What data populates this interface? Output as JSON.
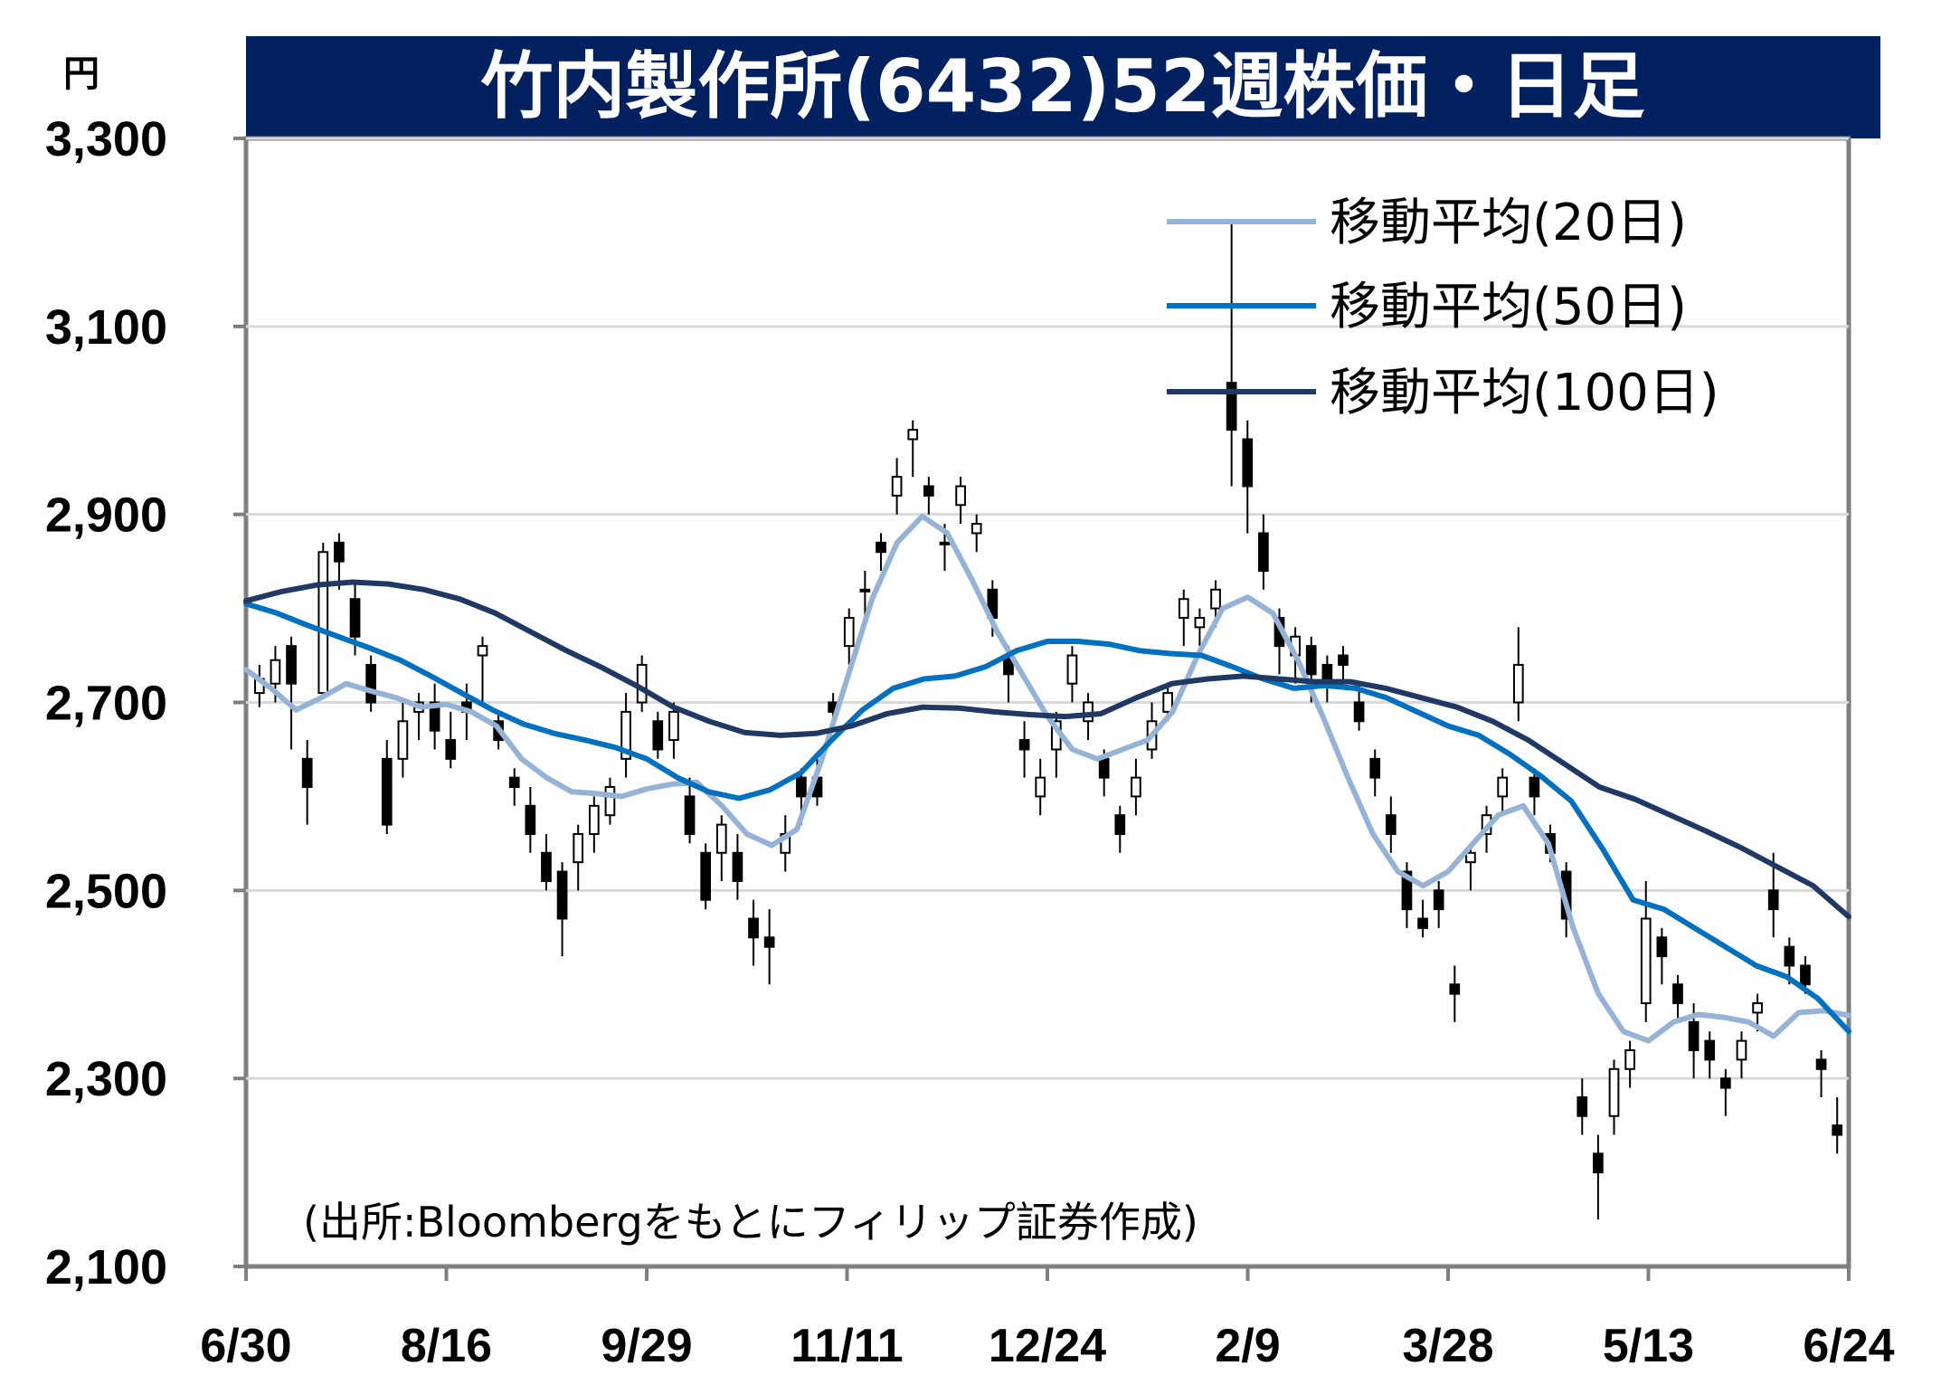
{
  "chart_data": {
    "type": "candlestick",
    "title": "竹内製作所(6432)52週株価・日足",
    "yunit": "円",
    "ylim": [
      2100,
      3300
    ],
    "yticks": [
      2100,
      2300,
      2500,
      2700,
      2900,
      3100,
      3300
    ],
    "ytick_labels": [
      "2,100",
      "2,300",
      "2,500",
      "2,700",
      "2,900",
      "3,100",
      "3,300"
    ],
    "xtick_labels": [
      "6/30",
      "8/16",
      "9/29",
      "11/11",
      "12/24",
      "2/9",
      "3/28",
      "5/13",
      "6/24"
    ],
    "grid": true,
    "legend_position": "top-right",
    "source": "(出所:Bloombergをもとにフィリップ証券作成)",
    "moving_averages": [
      {
        "name": "移動平均(20日)",
        "color": "#95b3d7",
        "values": [
          2735,
          2715,
          2692,
          2705,
          2720,
          2712,
          2705,
          2695,
          2698,
          2690,
          2675,
          2640,
          2620,
          2605,
          2603,
          2600,
          2608,
          2613,
          2615,
          2590,
          2560,
          2548,
          2565,
          2640,
          2725,
          2810,
          2870,
          2898,
          2880,
          2830,
          2775,
          2730,
          2685,
          2650,
          2640,
          2650,
          2660,
          2690,
          2750,
          2800,
          2812,
          2795,
          2745,
          2685,
          2620,
          2560,
          2520,
          2505,
          2520,
          2550,
          2580,
          2590,
          2550,
          2460,
          2390,
          2350,
          2340,
          2360,
          2368,
          2365,
          2360,
          2345,
          2370,
          2372,
          2367
        ]
      },
      {
        "name": "移動平均(50日)",
        "color": "#0070c0",
        "values": [
          2805,
          2795,
          2782,
          2770,
          2758,
          2745,
          2728,
          2710,
          2692,
          2677,
          2667,
          2660,
          2652,
          2640,
          2620,
          2605,
          2598,
          2607,
          2625,
          2660,
          2692,
          2715,
          2725,
          2728,
          2738,
          2755,
          2765,
          2765,
          2762,
          2755,
          2752,
          2750,
          2738,
          2725,
          2715,
          2718,
          2715,
          2705,
          2690,
          2675,
          2665,
          2645,
          2622,
          2595,
          2545,
          2490,
          2480,
          2460,
          2440,
          2420,
          2408,
          2385,
          2350
        ]
      },
      {
        "name": "移動平均(100日)",
        "color": "#1f3864",
        "values": [
          2808,
          2818,
          2825,
          2828,
          2826,
          2820,
          2810,
          2795,
          2775,
          2755,
          2737,
          2717,
          2695,
          2680,
          2668,
          2665,
          2667,
          2675,
          2688,
          2695,
          2694,
          2690,
          2687,
          2685,
          2688,
          2705,
          2720,
          2725,
          2728,
          2725,
          2722,
          2722,
          2715,
          2705,
          2695,
          2680,
          2660,
          2635,
          2610,
          2597,
          2580,
          2563,
          2545,
          2525,
          2505,
          2472
        ]
      }
    ],
    "candles": [
      [
        2710,
        2725,
        2695,
        2740
      ],
      [
        2720,
        2745,
        2700,
        2760
      ],
      [
        2760,
        2720,
        2650,
        2770
      ],
      [
        2640,
        2610,
        2570,
        2660
      ],
      [
        2710,
        2860,
        2705,
        2870
      ],
      [
        2870,
        2850,
        2820,
        2880
      ],
      [
        2810,
        2770,
        2750,
        2830
      ],
      [
        2740,
        2700,
        2690,
        2750
      ],
      [
        2640,
        2570,
        2560,
        2660
      ],
      [
        2640,
        2680,
        2620,
        2700
      ],
      [
        2690,
        2700,
        2660,
        2710
      ],
      [
        2700,
        2670,
        2650,
        2720
      ],
      [
        2660,
        2640,
        2630,
        2690
      ],
      [
        2700,
        2690,
        2660,
        2720
      ],
      [
        2750,
        2760,
        2700,
        2770
      ],
      [
        2680,
        2660,
        2650,
        2690
      ],
      [
        2620,
        2610,
        2590,
        2630
      ],
      [
        2590,
        2560,
        2540,
        2610
      ],
      [
        2540,
        2510,
        2500,
        2560
      ],
      [
        2520,
        2470,
        2430,
        2530
      ],
      [
        2530,
        2560,
        2500,
        2570
      ],
      [
        2560,
        2590,
        2540,
        2600
      ],
      [
        2580,
        2610,
        2570,
        2620
      ],
      [
        2640,
        2690,
        2620,
        2710
      ],
      [
        2700,
        2740,
        2690,
        2750
      ],
      [
        2680,
        2650,
        2640,
        2690
      ],
      [
        2660,
        2690,
        2640,
        2700
      ],
      [
        2600,
        2560,
        2550,
        2620
      ],
      [
        2540,
        2490,
        2480,
        2550
      ],
      [
        2540,
        2570,
        2510,
        2580
      ],
      [
        2540,
        2510,
        2490,
        2560
      ],
      [
        2470,
        2450,
        2420,
        2490
      ],
      [
        2450,
        2440,
        2400,
        2480
      ],
      [
        2540,
        2560,
        2520,
        2580
      ],
      [
        2620,
        2600,
        2570,
        2630
      ],
      [
        2620,
        2600,
        2590,
        2640
      ],
      [
        2700,
        2690,
        2670,
        2710
      ],
      [
        2760,
        2790,
        2740,
        2800
      ],
      [
        2820,
        2820,
        2780,
        2840
      ],
      [
        2870,
        2860,
        2840,
        2880
      ],
      [
        2920,
        2940,
        2900,
        2960
      ],
      [
        2980,
        2990,
        2940,
        3000
      ],
      [
        2930,
        2920,
        2900,
        2940
      ],
      [
        2870,
        2870,
        2840,
        2890
      ],
      [
        2910,
        2930,
        2890,
        2940
      ],
      [
        2880,
        2890,
        2860,
        2900
      ],
      [
        2820,
        2790,
        2770,
        2830
      ],
      [
        2750,
        2730,
        2700,
        2760
      ],
      [
        2660,
        2650,
        2620,
        2680
      ],
      [
        2600,
        2620,
        2580,
        2640
      ],
      [
        2650,
        2680,
        2620,
        2690
      ],
      [
        2720,
        2750,
        2700,
        2760
      ],
      [
        2680,
        2700,
        2660,
        2710
      ],
      [
        2640,
        2620,
        2600,
        2650
      ],
      [
        2580,
        2560,
        2540,
        2590
      ],
      [
        2600,
        2620,
        2580,
        2640
      ],
      [
        2650,
        2680,
        2640,
        2700
      ],
      [
        2690,
        2710,
        2680,
        2720
      ],
      [
        2790,
        2810,
        2760,
        2820
      ],
      [
        2780,
        2790,
        2760,
        2800
      ],
      [
        2800,
        2820,
        2780,
        2830
      ],
      [
        3040,
        2990,
        2930,
        3210
      ],
      [
        2980,
        2930,
        2880,
        3000
      ],
      [
        2880,
        2840,
        2820,
        2900
      ],
      [
        2790,
        2760,
        2730,
        2800
      ],
      [
        2750,
        2770,
        2720,
        2780
      ],
      [
        2760,
        2730,
        2700,
        2770
      ],
      [
        2740,
        2720,
        2700,
        2750
      ],
      [
        2750,
        2740,
        2720,
        2760
      ],
      [
        2700,
        2680,
        2670,
        2720
      ],
      [
        2640,
        2620,
        2600,
        2650
      ],
      [
        2580,
        2560,
        2540,
        2600
      ],
      [
        2520,
        2480,
        2460,
        2530
      ],
      [
        2470,
        2460,
        2450,
        2490
      ],
      [
        2500,
        2480,
        2460,
        2510
      ],
      [
        2400,
        2390,
        2360,
        2420
      ],
      [
        2530,
        2540,
        2500,
        2550
      ],
      [
        2560,
        2580,
        2540,
        2590
      ],
      [
        2600,
        2620,
        2580,
        2630
      ],
      [
        2700,
        2740,
        2680,
        2780
      ],
      [
        2620,
        2600,
        2580,
        2630
      ],
      [
        2560,
        2540,
        2530,
        2570
      ],
      [
        2520,
        2470,
        2450,
        2530
      ],
      [
        2280,
        2260,
        2240,
        2300
      ],
      [
        2220,
        2200,
        2150,
        2240
      ],
      [
        2260,
        2310,
        2240,
        2320
      ],
      [
        2310,
        2330,
        2290,
        2340
      ],
      [
        2380,
        2470,
        2360,
        2510
      ],
      [
        2450,
        2430,
        2400,
        2460
      ],
      [
        2400,
        2380,
        2360,
        2410
      ],
      [
        2360,
        2330,
        2300,
        2380
      ],
      [
        2340,
        2320,
        2300,
        2350
      ],
      [
        2300,
        2290,
        2260,
        2310
      ],
      [
        2320,
        2340,
        2300,
        2350
      ],
      [
        2370,
        2380,
        2350,
        2390
      ],
      [
        2500,
        2480,
        2450,
        2540
      ],
      [
        2440,
        2420,
        2400,
        2450
      ],
      [
        2420,
        2400,
        2390,
        2430
      ],
      [
        2320,
        2310,
        2280,
        2330
      ],
      [
        2250,
        2240,
        2220,
        2280
      ]
    ]
  }
}
